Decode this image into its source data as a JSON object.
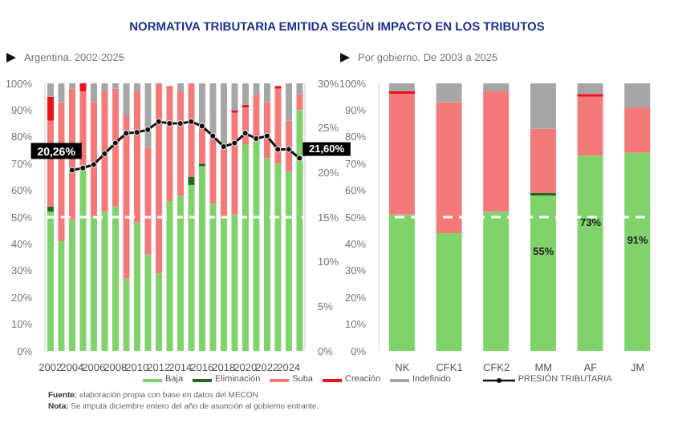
{
  "chart_data": [
    {
      "type": "bar",
      "title": "NORMATIVA TRIBUTARIA EMITIDA SEGÚN IMPACTO EN LOS TRIBUTOS",
      "subtitle": "Argentina. 2002-2025",
      "stacked": true,
      "legend": "bottom",
      "marker": "circle",
      "categories": [
        "2002",
        null,
        "2004",
        null,
        "2006",
        null,
        "2008",
        null,
        "2010",
        null,
        "2012",
        null,
        "2014",
        null,
        "2016",
        null,
        "2018",
        null,
        "2020",
        null,
        "2022",
        null,
        "2024",
        null
      ],
      "series": [
        {
          "name": "Baja",
          "color": "#7fd36a",
          "values": [
            52,
            41,
            49,
            68,
            50,
            52,
            54,
            27,
            48,
            36,
            29,
            56,
            58,
            62,
            69,
            55,
            50,
            51,
            77,
            79,
            72,
            70,
            67,
            90
          ]
        },
        {
          "name": "Eliminación",
          "color": "#1e6b1e",
          "values": [
            2,
            0,
            0,
            0,
            0,
            0,
            0,
            0,
            0,
            0,
            0,
            0,
            0,
            3,
            1,
            0,
            0,
            0,
            0,
            0,
            0,
            0,
            0,
            0
          ]
        },
        {
          "name": "Suba",
          "color": "#f47a7a",
          "values": [
            32,
            52,
            49,
            29,
            43,
            45,
            44,
            61,
            49,
            40,
            71,
            43,
            39,
            35,
            14,
            24,
            26,
            38,
            14,
            17,
            21,
            28,
            19,
            6
          ]
        },
        {
          "name": "Creación",
          "color": "#e8131b",
          "values": [
            9,
            0,
            0,
            3,
            0,
            0,
            0,
            0,
            0,
            0,
            0,
            0,
            0,
            0,
            0,
            0,
            0,
            1,
            1,
            0,
            0,
            1,
            0,
            0
          ]
        },
        {
          "name": "Indefinido",
          "color": "#a6a6a6",
          "values": [
            5,
            7,
            2,
            0,
            7,
            3,
            2,
            12,
            3,
            24,
            0,
            null,
            3,
            0,
            16,
            21,
            24,
            10,
            8,
            4,
            7,
            null,
            14,
            4
          ]
        },
        {
          "name": "PRESIÓN TRIBUTARIA",
          "type": "line",
          "axis": "y2",
          "color": "#111111",
          "values": [
            null,
            null,
            20.26,
            20.5,
            20.9,
            22.1,
            23.3,
            24.4,
            24.5,
            24.8,
            25.7,
            25.5,
            25.5,
            25.7,
            25.2,
            24.1,
            22.9,
            23.3,
            24.4,
            23.8,
            24.1,
            22.6,
            22.6,
            21.6
          ],
          "value_labels": [
            null,
            null,
            "20,26%",
            null,
            null,
            null,
            null,
            null,
            null,
            null,
            null,
            null,
            null,
            null,
            null,
            null,
            null,
            null,
            null,
            null,
            null,
            null,
            null,
            "21,60%"
          ]
        }
      ],
      "ylim": [
        0,
        100
      ],
      "yticks": [
        {
          "value": 0,
          "label": "0%"
        },
        {
          "value": 10,
          "label": "10%"
        },
        {
          "value": 20,
          "label": "20%"
        },
        {
          "value": 30,
          "label": "30%"
        },
        {
          "value": 40,
          "label": "40%"
        },
        {
          "value": 50,
          "label": "50%"
        },
        {
          "value": 60,
          "label": "60%"
        },
        {
          "value": 70,
          "label": "70%"
        },
        {
          "value": 80,
          "label": "80%"
        },
        {
          "value": 90,
          "label": "90%"
        },
        {
          "value": 100,
          "label": "100%"
        }
      ],
      "y2lim": [
        0,
        30
      ],
      "y2ticks": [
        {
          "value": 0,
          "label": "0%"
        },
        {
          "value": 5,
          "label": "5%"
        },
        {
          "value": 10,
          "label": "10%"
        },
        {
          "value": 15,
          "label": "15%"
        },
        {
          "value": 20,
          "label": "20%"
        },
        {
          "value": 25,
          "label": "25%"
        },
        {
          "value": 30,
          "label": "30%"
        }
      ],
      "ref_lines": [
        {
          "axis": "y",
          "value": 50,
          "color": "#ffffff",
          "line_style": "dashed"
        }
      ],
      "annotations": [
        "Fuente: elaboración propia con base en datos del MECON",
        "Nota: Se imputa diciembre entero del año de asunción al gobierno entrante."
      ]
    },
    {
      "type": "bar",
      "subtitle": "Por gobierno. De 2003 a 2025",
      "stacked": true,
      "categories": [
        "NK",
        "CFK1",
        "CFK2",
        "MM",
        "AF",
        "JM"
      ],
      "series": [
        {
          "color": "#7fd36a",
          "values": [
            51,
            44,
            52,
            58,
            73,
            74
          ]
        },
        {
          "color": "#1e6b1e",
          "values": [
            0,
            0,
            0,
            1,
            0,
            0
          ]
        },
        {
          "color": "#f47a7a",
          "values": [
            45,
            49,
            45,
            24,
            22,
            17
          ]
        },
        {
          "color": "#e8131b",
          "values": [
            1,
            0,
            0,
            0,
            1,
            0
          ]
        },
        {
          "color": "#a6a6a6",
          "values": [
            3,
            7,
            3,
            17,
            4,
            9
          ]
        }
      ],
      "ylim": [
        0,
        100
      ],
      "yticks": [
        {
          "value": 0,
          "label": "0%"
        },
        {
          "value": 10,
          "label": "10%"
        },
        {
          "value": 20,
          "label": "20%"
        },
        {
          "value": 30,
          "label": "30%"
        },
        {
          "value": 40,
          "label": "40%"
        },
        {
          "value": 50,
          "label": "50%"
        },
        {
          "value": 60,
          "label": "60%"
        },
        {
          "value": 70,
          "label": "70%"
        },
        {
          "value": 80,
          "label": "80%"
        },
        {
          "value": 90,
          "label": "90%"
        },
        {
          "value": 100,
          "label": "100%"
        }
      ],
      "ref_lines": [
        {
          "axis": "y",
          "value": 50,
          "color": "#ffffff",
          "line_style": "dashed"
        }
      ],
      "annotations": [
        "55%",
        "73%",
        "91%"
      ]
    }
  ]
}
